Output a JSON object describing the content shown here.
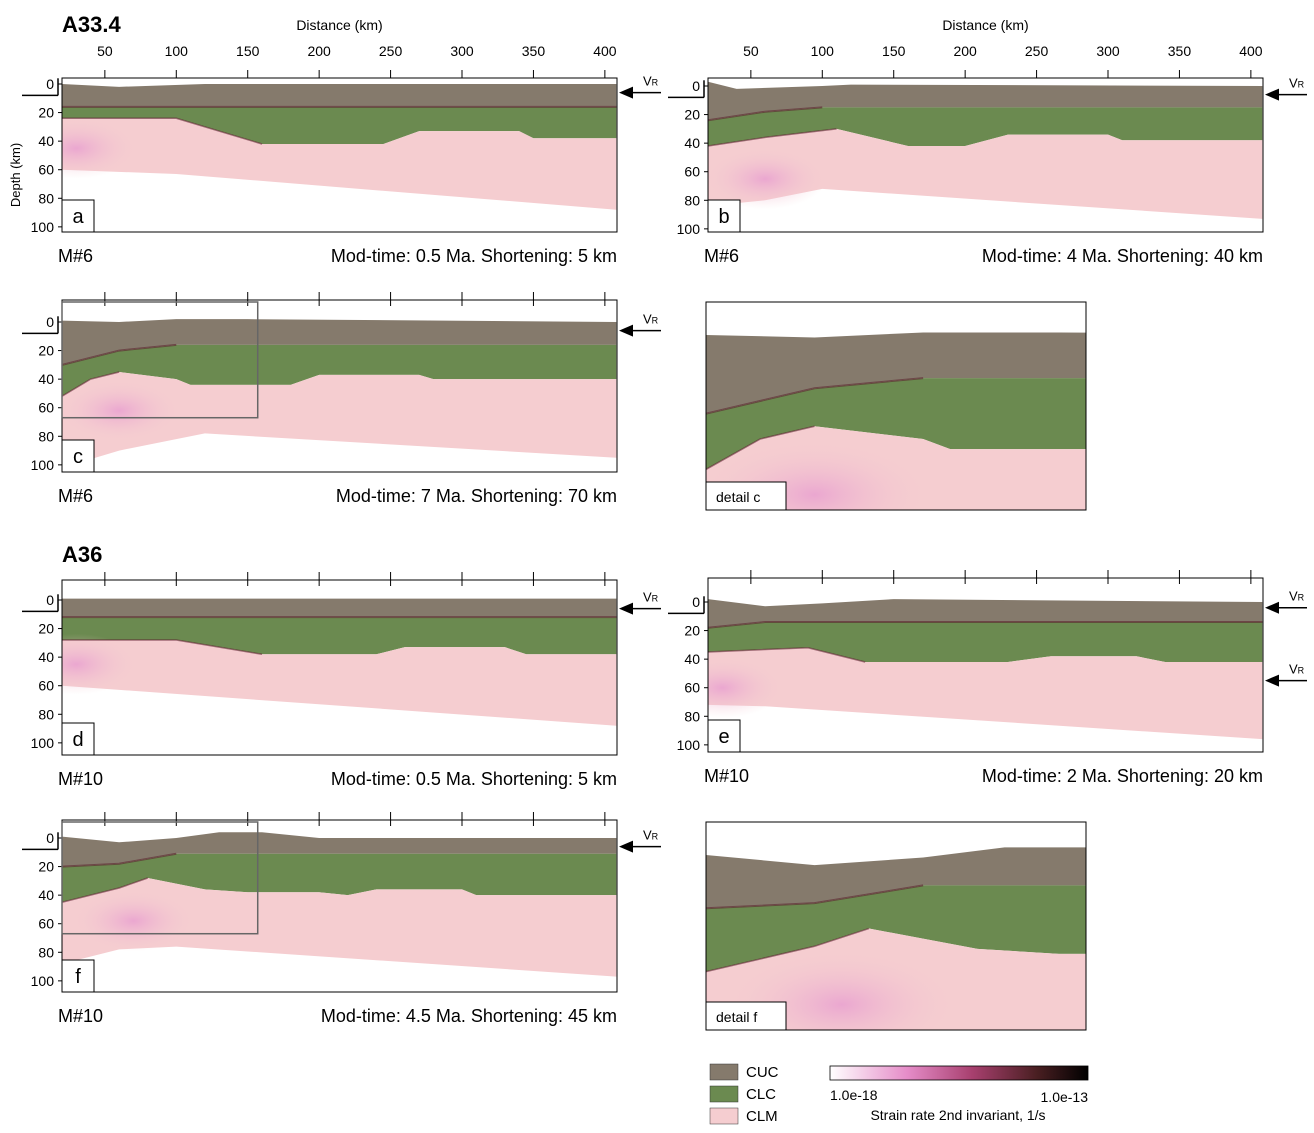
{
  "groups": [
    {
      "title": "A33.4"
    },
    {
      "title": "A36"
    }
  ],
  "x_axis": {
    "label": "Distance (km)",
    "ticks": [
      "50",
      "100",
      "150",
      "200",
      "250",
      "300",
      "350",
      "400"
    ]
  },
  "y_axis": {
    "label": "Depth (km)",
    "ticks": [
      "0",
      "20",
      "40",
      "60",
      "80",
      "100"
    ]
  },
  "velocity": {
    "main": "V",
    "sub": "R"
  },
  "panels": [
    {
      "letter": "a",
      "model": "M#6",
      "caption": "Mod-time: 0.5 Ma. Shortening: 5 km"
    },
    {
      "letter": "b",
      "model": "M#6",
      "caption": "Mod-time: 4 Ma. Shortening: 40 km"
    },
    {
      "letter": "c",
      "model": "M#6",
      "caption": "Mod-time: 7 Ma. Shortening: 70 km"
    },
    {
      "letter": "d",
      "model": "M#10",
      "caption": "Mod-time: 0.5 Ma. Shortening: 5 km"
    },
    {
      "letter": "e",
      "model": "M#10",
      "caption": "Mod-time: 2 Ma. Shortening: 20 km"
    },
    {
      "letter": "f",
      "model": "M#10",
      "caption": "Mod-time: 4.5 Ma. Shortening: 45 km"
    }
  ],
  "details": [
    {
      "label": "detail c"
    },
    {
      "label": "detail f"
    }
  ],
  "legend": {
    "units": [
      {
        "name": "CUC",
        "color": "#857a6c"
      },
      {
        "name": "CLC",
        "color": "#6b8a50"
      },
      {
        "name": "CLM",
        "color": "#f5cdd0"
      }
    ],
    "colorbar": {
      "min": "1.0e-18",
      "max": "1.0e-13",
      "label": "Strain rate 2nd invariant, 1/s"
    }
  }
}
